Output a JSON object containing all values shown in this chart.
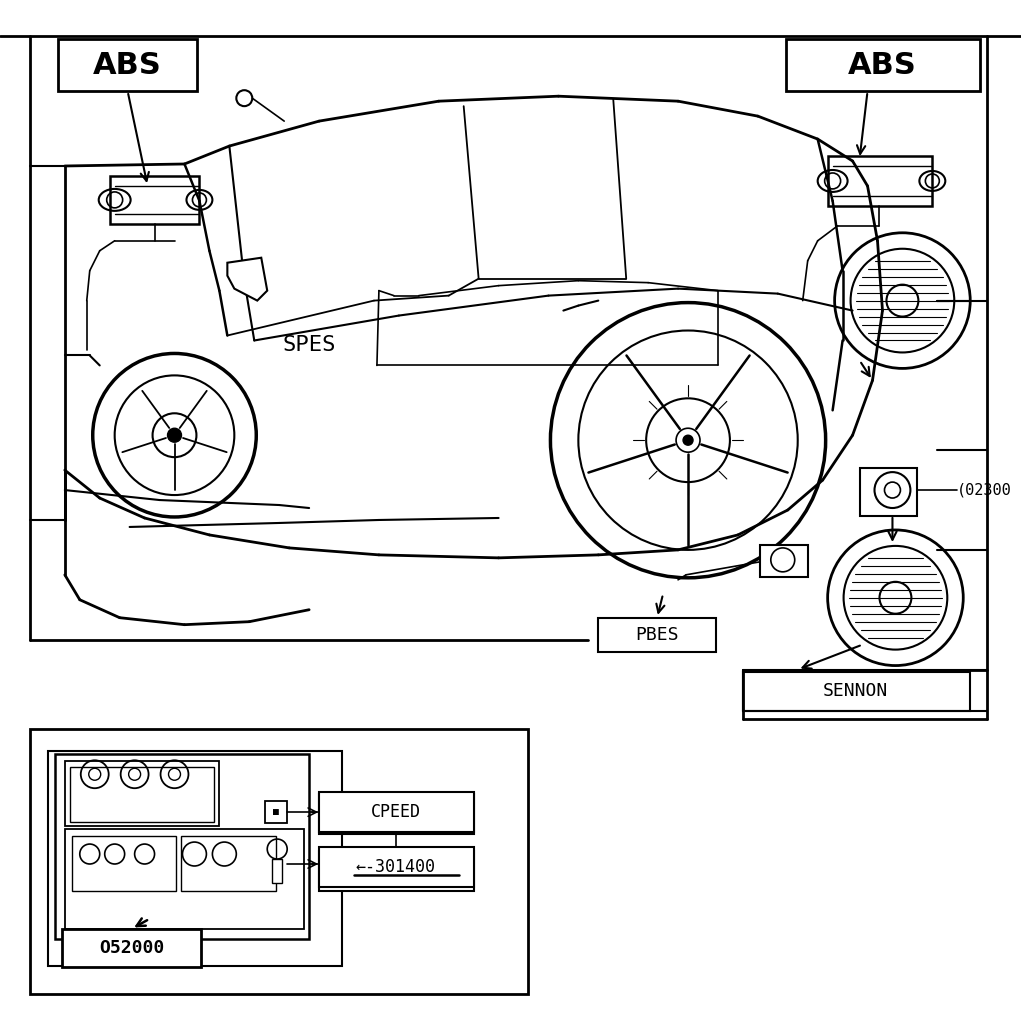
{
  "bg_color": "#ffffff",
  "line_color": "#000000",
  "labels": {
    "abs_left": "ABS",
    "abs_right": "ABS",
    "spes": "SPES",
    "pbes": "PBES",
    "sennon": "SENNON",
    "cpeed": "CPEED",
    "part_num_1": "O52000",
    "part_num_2": "(02300",
    "part_num_3": "←-301400"
  }
}
